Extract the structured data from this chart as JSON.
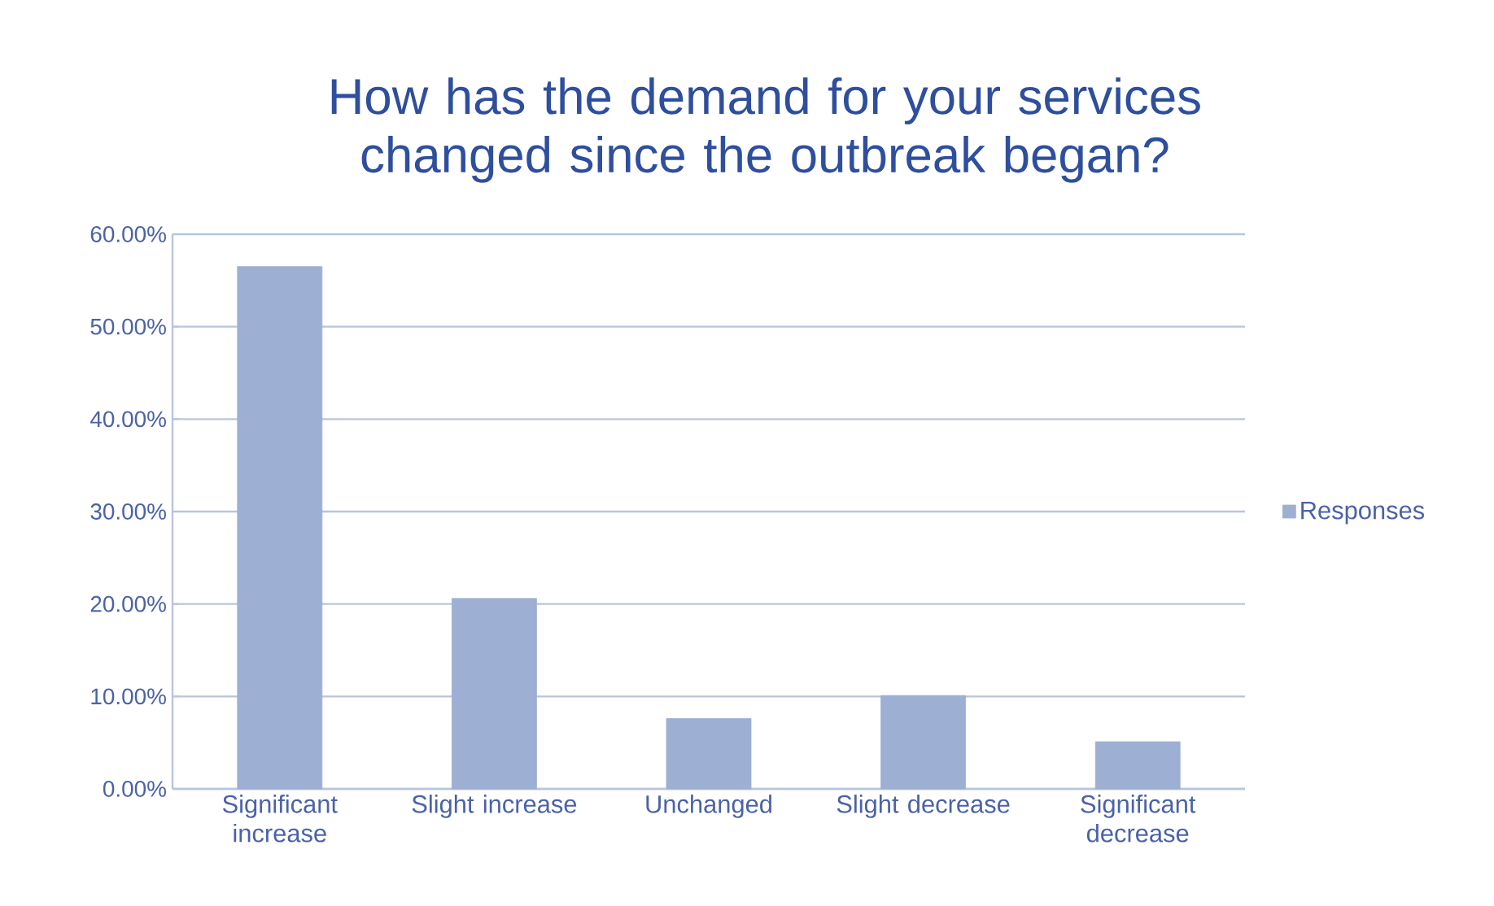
{
  "chart_data": {
    "type": "bar",
    "title": "How has the demand for your services changed since the outbreak began?",
    "categories": [
      "Significant increase",
      "Slight increase",
      "Unchanged",
      "Slight decrease",
      "Significant decrease"
    ],
    "series": [
      {
        "name": "Responses",
        "color": "#9dafd3",
        "values": [
          56.5,
          20.6,
          7.6,
          10.1,
          5.1
        ]
      }
    ],
    "ylim": [
      0,
      60
    ],
    "yticks": [
      {
        "value": 0,
        "label": "0.00%"
      },
      {
        "value": 10,
        "label": "10.00%"
      },
      {
        "value": 20,
        "label": "20.00%"
      },
      {
        "value": 30,
        "label": "30.00%"
      },
      {
        "value": 40,
        "label": "40.00%"
      },
      {
        "value": 50,
        "label": "50.00%"
      },
      {
        "value": 60,
        "label": "60.00%"
      }
    ],
    "grid": "y",
    "legend": "right"
  }
}
